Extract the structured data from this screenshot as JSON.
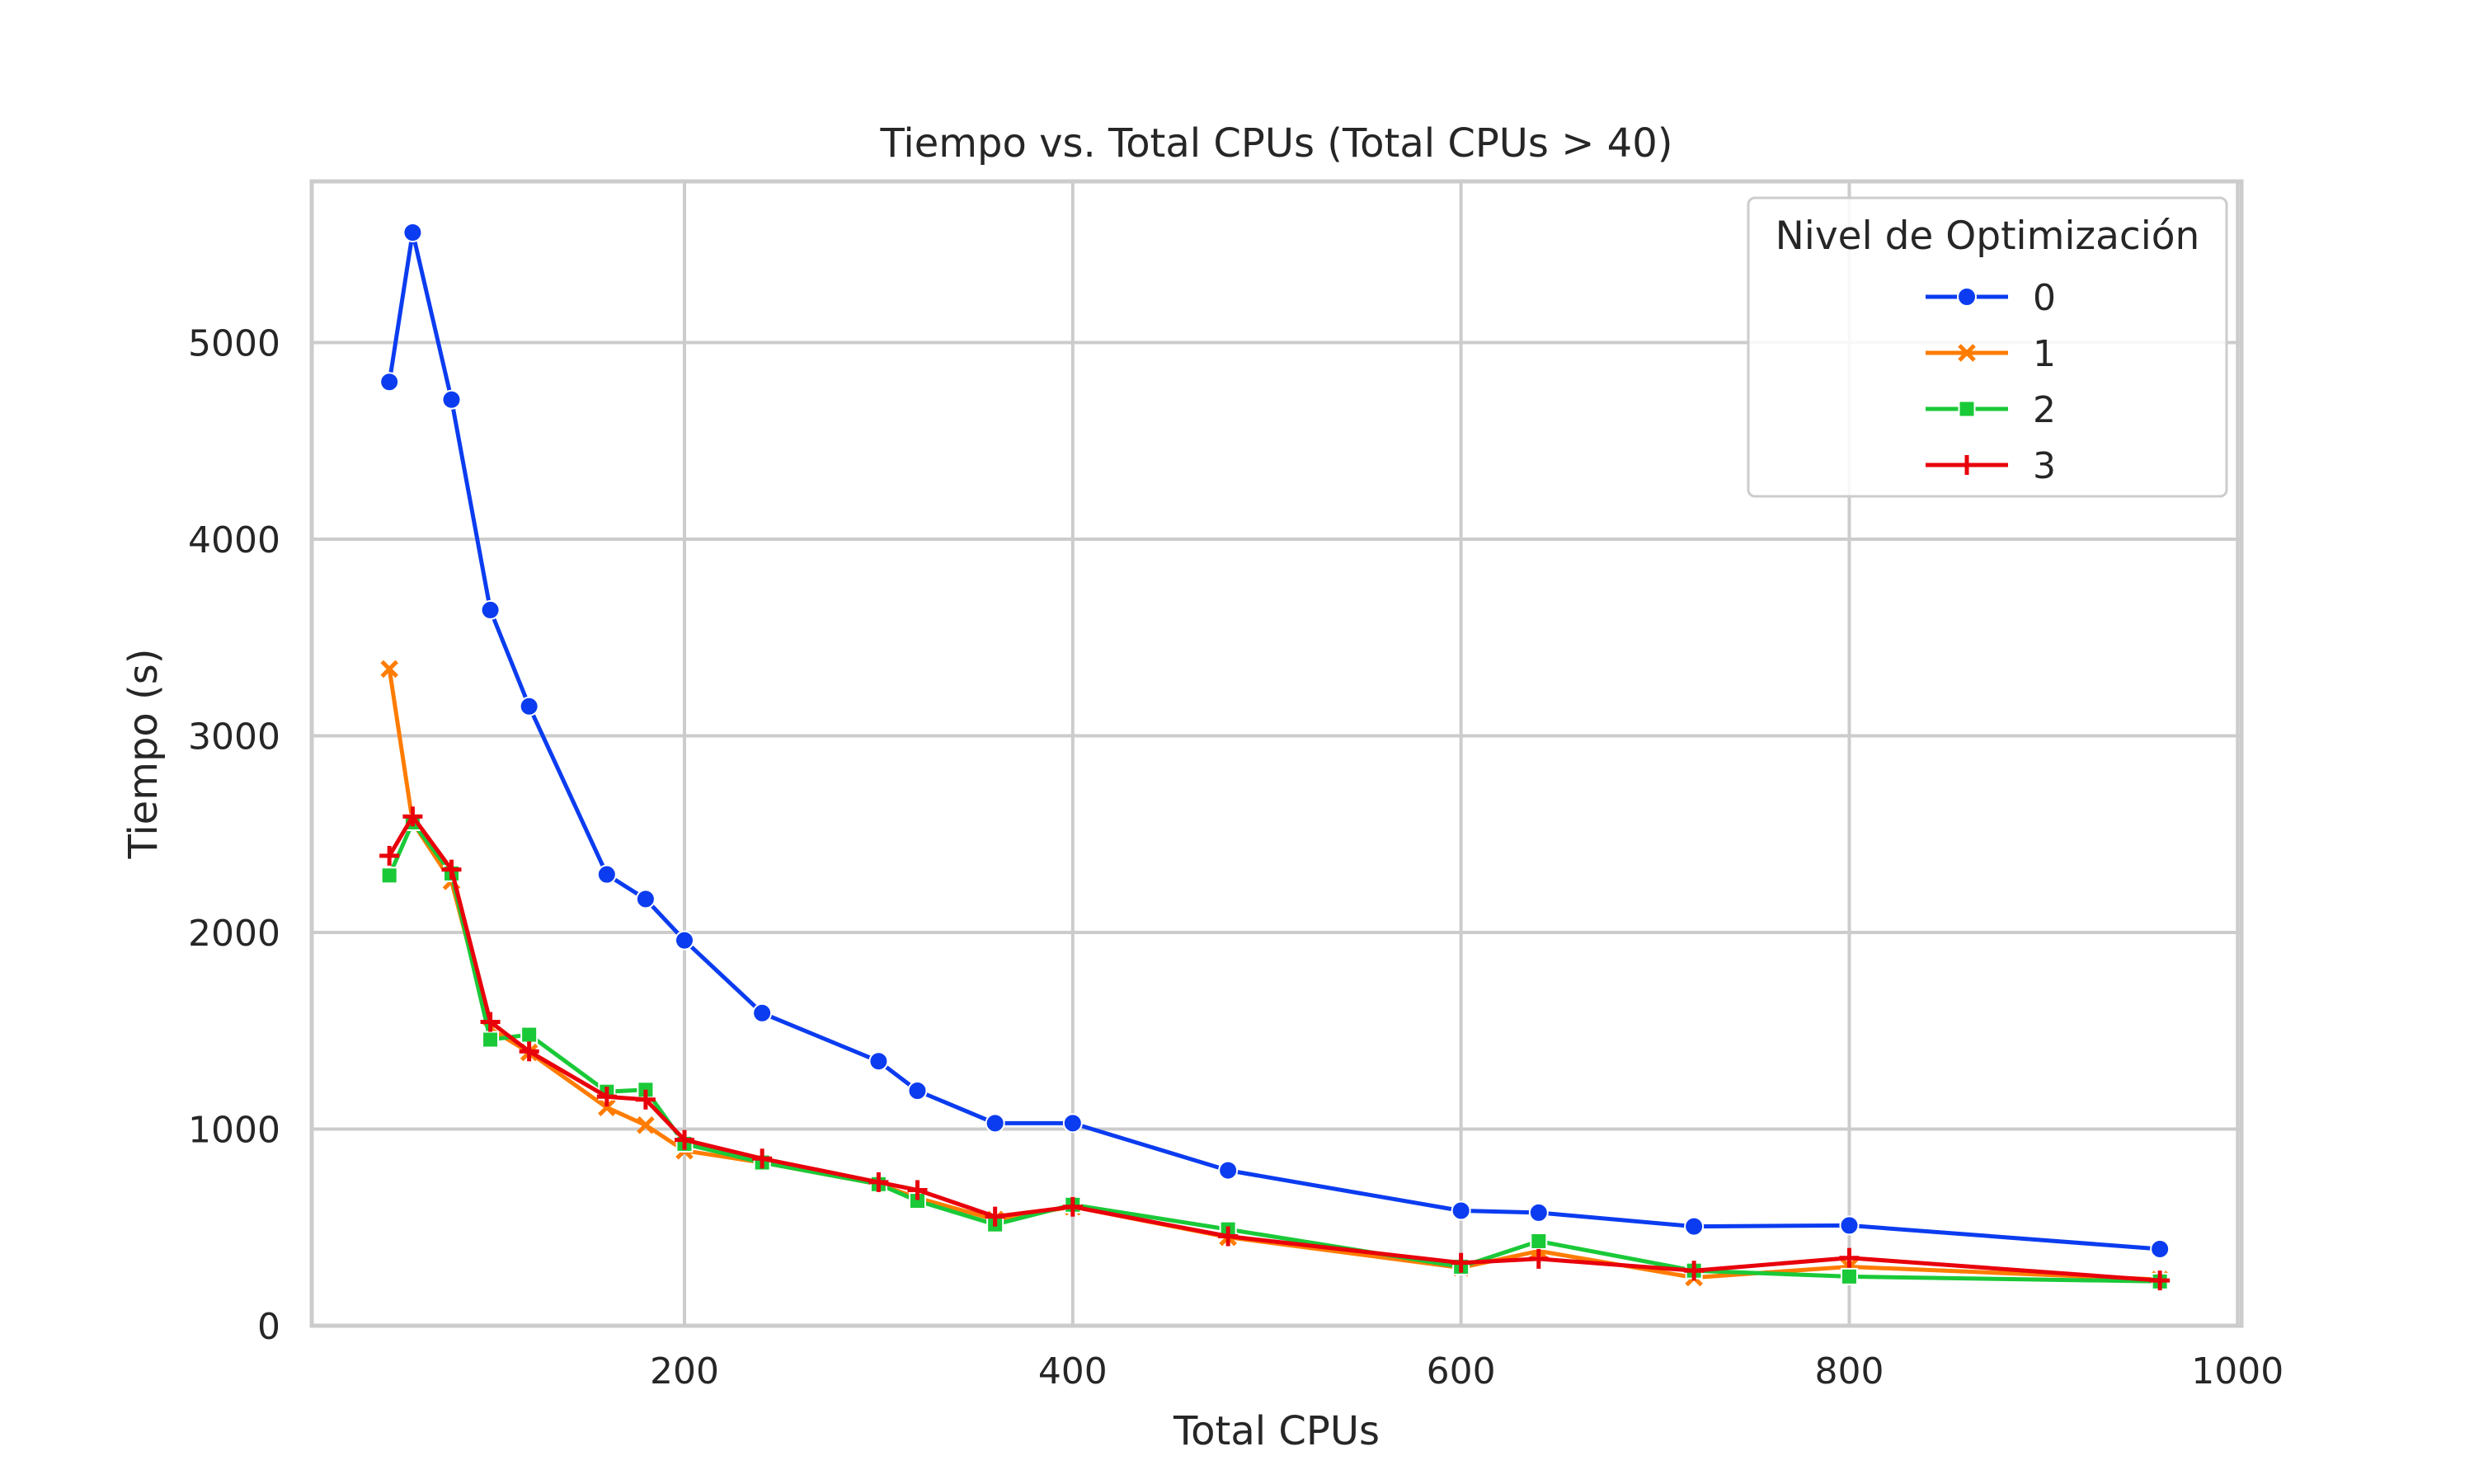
{
  "chart_data": {
    "type": "line",
    "title": "Tiempo vs. Total CPUs (Total CPUs > 40)",
    "xlabel": "Total CPUs",
    "ylabel": "Tiempo (s)",
    "xlim": [
      8,
      1002
    ],
    "ylim": [
      0,
      5820
    ],
    "xticks": [
      200,
      400,
      600,
      800,
      1000
    ],
    "yticks": [
      0,
      1000,
      2000,
      3000,
      4000,
      5000
    ],
    "grid": true,
    "legend": {
      "title": "Nivel de Optimización",
      "placement": "top-right"
    },
    "series": [
      {
        "name": "0",
        "color": "#0b3cf0",
        "marker": "circle",
        "x": [
          48,
          60,
          80,
          100,
          120,
          160,
          180,
          200,
          240,
          300,
          320,
          360,
          400,
          480,
          600,
          640,
          720,
          800,
          960
        ],
        "y": [
          4800,
          5560,
          4710,
          3640,
          3150,
          2295,
          2170,
          1960,
          1590,
          1345,
          1195,
          1030,
          1030,
          790,
          585,
          575,
          505,
          510,
          390
        ]
      },
      {
        "name": "1",
        "color": "#ff7c00",
        "marker": "x",
        "x": [
          48,
          60,
          80,
          100,
          120,
          160,
          180,
          200,
          240,
          300,
          320,
          360,
          400,
          480,
          600,
          640,
          720,
          800,
          960
        ],
        "y": [
          3340,
          2560,
          2260,
          1510,
          1390,
          1110,
          1020,
          890,
          830,
          720,
          650,
          540,
          605,
          450,
          295,
          380,
          245,
          300,
          235
        ]
      },
      {
        "name": "2",
        "color": "#1ac938",
        "marker": "square",
        "x": [
          48,
          60,
          80,
          100,
          120,
          160,
          180,
          200,
          240,
          300,
          320,
          360,
          400,
          480,
          600,
          640,
          720,
          800,
          960
        ],
        "y": [
          2290,
          2560,
          2300,
          1455,
          1480,
          1190,
          1200,
          925,
          830,
          720,
          635,
          515,
          615,
          490,
          300,
          430,
          280,
          250,
          225
        ]
      },
      {
        "name": "3",
        "color": "#e8000b",
        "marker": "plus",
        "x": [
          48,
          60,
          80,
          100,
          120,
          160,
          180,
          200,
          240,
          300,
          320,
          360,
          400,
          480,
          600,
          640,
          720,
          800,
          960
        ],
        "y": [
          2390,
          2590,
          2320,
          1545,
          1395,
          1165,
          1150,
          945,
          850,
          730,
          690,
          555,
          605,
          455,
          320,
          340,
          280,
          345,
          230
        ]
      }
    ]
  }
}
